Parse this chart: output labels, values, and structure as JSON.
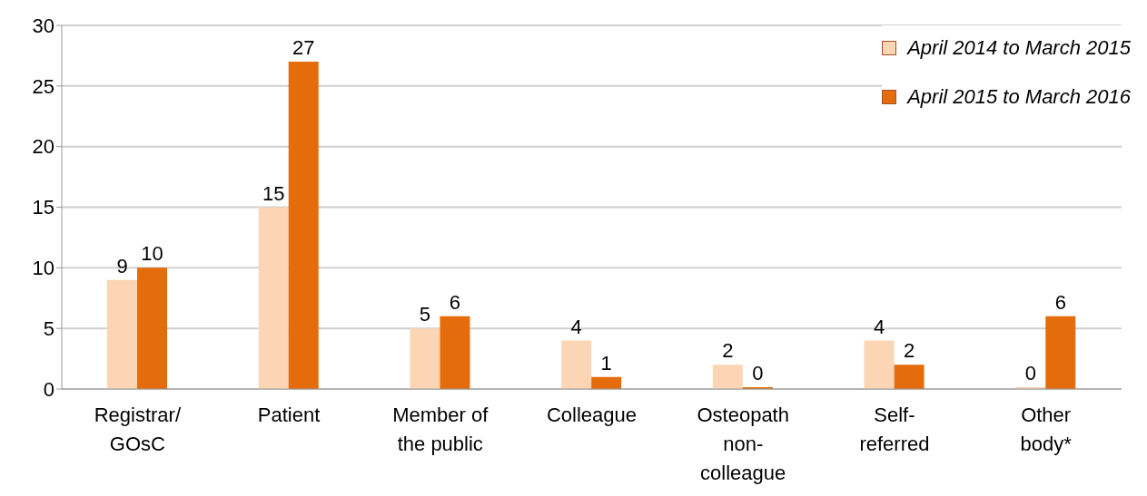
{
  "chart_data": {
    "type": "bar",
    "categories": [
      "Registrar/ GOsC",
      "Patient",
      "Member of the public",
      "Colleague",
      "Osteopath non-colleague",
      "Self-referred",
      "Other body*"
    ],
    "series": [
      {
        "name": "April 2014 to March 2015",
        "color": "#fcd5b4",
        "values": [
          9,
          15,
          5,
          4,
          2,
          4,
          0
        ]
      },
      {
        "name": "April 2015 to March 2016",
        "color": "#e46c0a",
        "values": [
          10,
          27,
          6,
          1,
          0,
          2,
          6
        ]
      }
    ],
    "ylim": [
      0,
      30
    ],
    "yticks": [
      0,
      5,
      10,
      15,
      20,
      25,
      30
    ],
    "grid": "y",
    "legend": "top right",
    "data_labels": true
  }
}
